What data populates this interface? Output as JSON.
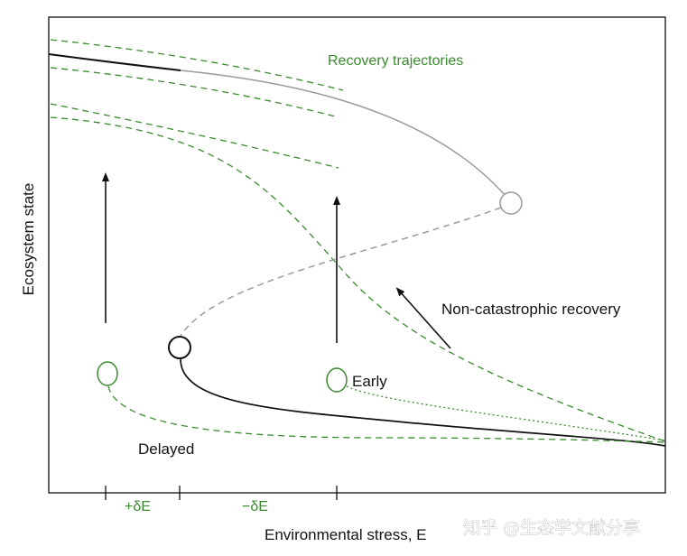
{
  "colors": {
    "green": "#3a8a2e",
    "black": "#111111",
    "grey": "#9a9a9a",
    "grey_dash": "#9a9a9a",
    "watermark": "#9a9a9a"
  },
  "labels": {
    "recovery_trajectories": "Recovery trajectories",
    "non_catastrophic_recovery": "Non-catastrophic recovery",
    "early": "Early",
    "delayed": "Delayed",
    "plus_delta_e": "+δE",
    "minus_delta_e": "−δE"
  },
  "axes": {
    "x_label": "Environmental stress, E",
    "y_label": "Ecosystem state"
  },
  "watermark": {
    "text": "知乎 @生态学文献分享"
  }
}
